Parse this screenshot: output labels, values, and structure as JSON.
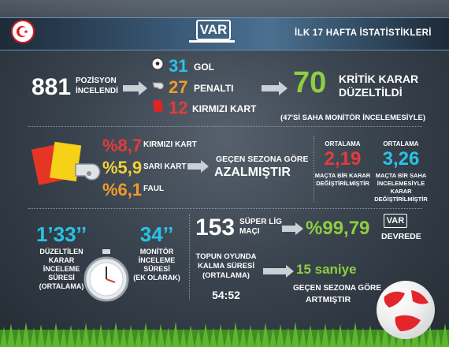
{
  "header": {
    "badge": "VAR",
    "title": "İLK 17 HAFTA İSTATİSTİKLERİ"
  },
  "positions": {
    "count": "881",
    "label_1": "POZİSYON",
    "label_2": "İNCELENDİ"
  },
  "results": {
    "goal": {
      "value": "31",
      "label": "GOL"
    },
    "penalty": {
      "value": "27",
      "label": "PENALTI"
    },
    "red_card": {
      "value": "12",
      "label": "KIRMIZI KART"
    }
  },
  "critical": {
    "value": "70",
    "label_1": "KRİTİK KARAR",
    "label_2": "DÜZELTİLDİ",
    "note": "(47'Sİ SAHA MONİTÖR İNCELEMESİYLE)"
  },
  "cards": {
    "red": {
      "value": "%8,7",
      "label": "KIRMIZI KART"
    },
    "yellow": {
      "value": "%5,9",
      "label": "SARI KART"
    },
    "foul": {
      "value": "%6,1",
      "label": "FAUL"
    },
    "summary_1": "GEÇEN SEZONA GÖRE",
    "summary_2": "AZALMIŞTIR"
  },
  "averages": {
    "left": {
      "title": "ORTALAMA",
      "value": "2,19",
      "desc_1": "MAÇTA BİR KARAR",
      "desc_2": "DEĞİŞTİRİLMİŞTİR"
    },
    "right": {
      "title": "ORTALAMA",
      "value": "3,26",
      "desc_1": "MAÇTA BİR SAHA",
      "desc_2": "İNCELEMESİYLE",
      "desc_3": "KARAR",
      "desc_4": "DEĞİŞTİRİLMİŞTİR"
    }
  },
  "review": {
    "corrected": {
      "value": "1’33’’",
      "l1": "DÜZELTİLEN",
      "l2": "KARAR",
      "l3": "İNCELEME",
      "l4": "SÜRESİ",
      "l5": "(ORTALAMA)"
    },
    "monitor": {
      "value": "34’’",
      "l1": "MONİTÖR",
      "l2": "İNCELEME",
      "l3": "SÜRESİ",
      "l4": "(EK OLARAK)"
    }
  },
  "league": {
    "count": "153",
    "label_1": "SÜPER LİG",
    "label_2": "MAÇI",
    "percent": "%99,79",
    "badge": "VAR",
    "status": "DEVREDE"
  },
  "play_time": {
    "l1": "TOPUN OYUNDA",
    "l2": "KALMA SÜRESİ",
    "l3": "(ORTALAMA)",
    "value": "54:52",
    "increase": "15 saniye",
    "note_1": "GEÇEN SEZONA GÖRE",
    "note_2": "ARTMIŞTIR"
  }
}
